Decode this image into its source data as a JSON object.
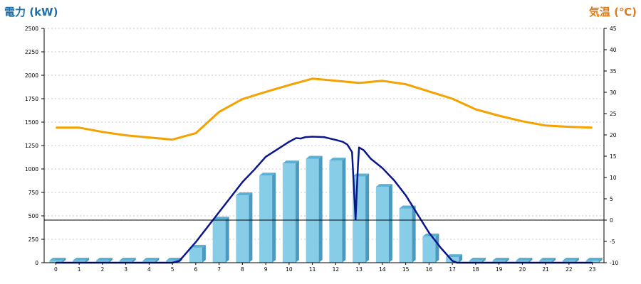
{
  "colors": {
    "left_title": "#1a6fa8",
    "right_title": "#e07b1a",
    "bar_face": "#87cde8",
    "bar_top": "#5bb0d3",
    "bar_side": "#4a9ac0",
    "power_line": "#0a168c",
    "temp_line": "#f5a100",
    "grid": "#c8c8c8"
  },
  "chart_data": {
    "type": "bar",
    "title": "",
    "left_axis_label": "電力 (kW)",
    "right_axis_label": "気温 (℃)",
    "left_ylim": [
      0,
      2500
    ],
    "left_ticks": [
      0,
      250,
      500,
      750,
      1000,
      1250,
      1500,
      1750,
      2000,
      2250,
      2500
    ],
    "right_ylim": [
      -10,
      45
    ],
    "right_ticks": [
      -10,
      -5,
      0,
      5,
      10,
      15,
      20,
      25,
      30,
      35,
      40,
      45
    ],
    "grid": true,
    "categories": [
      "0",
      "1",
      "2",
      "3",
      "4",
      "5",
      "6",
      "7",
      "8",
      "9",
      "10",
      "11",
      "12",
      "13",
      "14",
      "15",
      "16",
      "17",
      "18",
      "19",
      "20",
      "21",
      "22",
      "23"
    ],
    "series": [
      {
        "kind": "bar",
        "axis": "left",
        "values": [
          0,
          0,
          0,
          0,
          0,
          0,
          160,
          460,
          720,
          930,
          1060,
          1110,
          1090,
          920,
          810,
          580,
          280,
          60,
          0,
          0,
          0,
          0,
          0,
          0
        ]
      },
      {
        "kind": "line",
        "axis": "left",
        "points": [
          [
            0,
            0
          ],
          [
            1,
            0
          ],
          [
            2,
            0
          ],
          [
            3,
            0
          ],
          [
            4,
            0
          ],
          [
            5,
            0
          ],
          [
            5.3,
            20
          ],
          [
            6,
            220
          ],
          [
            6.5,
            380
          ],
          [
            7,
            540
          ],
          [
            7.5,
            700
          ],
          [
            8,
            860
          ],
          [
            8.5,
            990
          ],
          [
            9,
            1130
          ],
          [
            9.5,
            1210
          ],
          [
            10,
            1290
          ],
          [
            10.3,
            1330
          ],
          [
            10.5,
            1325
          ],
          [
            10.7,
            1340
          ],
          [
            11,
            1345
          ],
          [
            11.5,
            1340
          ],
          [
            12,
            1310
          ],
          [
            12.3,
            1290
          ],
          [
            12.5,
            1260
          ],
          [
            12.7,
            1180
          ],
          [
            12.8,
            700
          ],
          [
            12.85,
            460
          ],
          [
            12.95,
            1020
          ],
          [
            13.0,
            1230
          ],
          [
            13.2,
            1200
          ],
          [
            13.5,
            1110
          ],
          [
            14,
            1010
          ],
          [
            14.5,
            880
          ],
          [
            15,
            720
          ],
          [
            15.5,
            520
          ],
          [
            16,
            320
          ],
          [
            16.5,
            160
          ],
          [
            17,
            20
          ],
          [
            17.2,
            0
          ],
          [
            18,
            0
          ],
          [
            19,
            0
          ],
          [
            20,
            0
          ],
          [
            21,
            0
          ],
          [
            22,
            0
          ],
          [
            23,
            0
          ]
        ]
      },
      {
        "kind": "line",
        "axis": "right",
        "points": [
          [
            0,
            21.7
          ],
          [
            1,
            21.7
          ],
          [
            2,
            20.7
          ],
          [
            3,
            19.9
          ],
          [
            4,
            19.4
          ],
          [
            5,
            18.9
          ],
          [
            6,
            20.4
          ],
          [
            7,
            25.4
          ],
          [
            8,
            28.4
          ],
          [
            9,
            30.1
          ],
          [
            10,
            31.7
          ],
          [
            11,
            33.2
          ],
          [
            12,
            32.7
          ],
          [
            13,
            32.2
          ],
          [
            14,
            32.7
          ],
          [
            15,
            31.9
          ],
          [
            16,
            30.2
          ],
          [
            17,
            28.5
          ],
          [
            18,
            26.0
          ],
          [
            19,
            24.5
          ],
          [
            20,
            23.2
          ],
          [
            21,
            22.2
          ],
          [
            22,
            21.9
          ],
          [
            23,
            21.7
          ]
        ]
      }
    ]
  }
}
